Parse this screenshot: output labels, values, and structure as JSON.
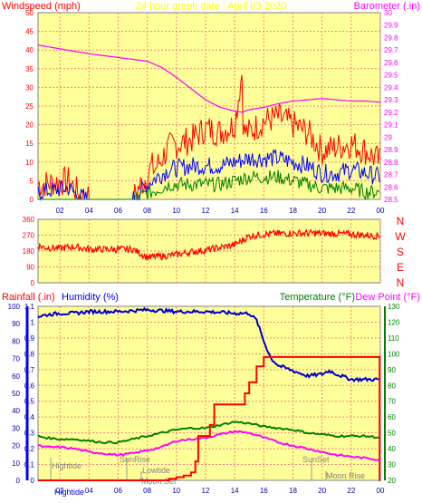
{
  "header": {
    "title": "24 hour graph date : April 03 2020",
    "windspeed_label": "Windspeed (mph)",
    "barometer_label": "Barometer (.in)"
  },
  "direction": {
    "compass": [
      "N",
      "W",
      "S",
      "E",
      "N"
    ]
  },
  "bottom": {
    "rainfall_label": "Rainfall (.in)",
    "humidity_label": "Humidity (%)",
    "temperature_label": "Temperature (°F)",
    "dewpoint_label": "Dew Point (°F)"
  },
  "events": {
    "hightide_1": "Hightide",
    "sunrise": "SunRise",
    "lowtide": "Lowtide",
    "moonset": "Moon Set",
    "sunset": "SunSet",
    "moonrise": "Moon Rise",
    "hightide_2": "Hightide"
  },
  "colors": {
    "panel": "#ffff99",
    "grid": "#f08080",
    "wind_gust": "#ff0000",
    "wind_avg": "#0000ff",
    "wind_min": "#008000",
    "barometer": "#ff00ff",
    "direction": "#ff0000",
    "humidity": "#0000cc",
    "temperature": "#008000",
    "dewpoint": "#ff00ff",
    "rain": "#ff0000",
    "windspeed_title": "#ff0000",
    "title": "#ffff00",
    "rainfall_title": "#ff0000",
    "humidity_title": "#0000ff",
    "temperature_title": "#008000",
    "dewpoint_title": "#ff00ff"
  },
  "chart_data": [
    {
      "type": "line",
      "name": "wind-barometer",
      "x_range": [
        0.5,
        24
      ],
      "x_ticks": [
        "02",
        "04",
        "06",
        "08",
        "10",
        "12",
        "14",
        "16",
        "18",
        "20",
        "22",
        "00"
      ],
      "y_left": {
        "ylim": [
          0,
          50
        ],
        "ticks": [
          0,
          5,
          10,
          15,
          20,
          25,
          30,
          35,
          40,
          45,
          50
        ]
      },
      "y_right": {
        "ylim": [
          28.5,
          30
        ],
        "ticks": [
          "28.5",
          "28.6",
          "28.7",
          "28.8",
          "28.9",
          "29",
          "29.1",
          "29.2",
          "29.3",
          "29.4",
          "29.5",
          "29.6",
          "29.7",
          "29.8",
          "29.9",
          "30"
        ]
      },
      "series": [
        {
          "axis": "left",
          "style": "gust",
          "points": [
            [
              0.5,
              4
            ],
            [
              2.6,
              5
            ],
            [
              3.0,
              3
            ],
            [
              3.4,
              1
            ],
            [
              4.0,
              0
            ],
            [
              7.0,
              0
            ],
            [
              7.4,
              3
            ],
            [
              7.8,
              5
            ],
            [
              8.3,
              9
            ],
            [
              8.5,
              8
            ],
            [
              9.5,
              14
            ],
            [
              11,
              16
            ],
            [
              12,
              19
            ],
            [
              13,
              18
            ],
            [
              14,
              20
            ],
            [
              14.5,
              34
            ],
            [
              14.6,
              18
            ],
            [
              15,
              18
            ],
            [
              16,
              21
            ],
            [
              17,
              22
            ],
            [
              18,
              20
            ],
            [
              19,
              18
            ],
            [
              20,
              13
            ],
            [
              21,
              14
            ],
            [
              22,
              15
            ],
            [
              23,
              13
            ],
            [
              24,
              10
            ]
          ],
          "amplitude": 4
        },
        {
          "axis": "left",
          "style": "avg",
          "points": [
            [
              0.5,
              2
            ],
            [
              2.6,
              3
            ],
            [
              3.2,
              1
            ],
            [
              4.0,
              0
            ],
            [
              7.0,
              0
            ],
            [
              7.5,
              2
            ],
            [
              8.3,
              5
            ],
            [
              9.5,
              8
            ],
            [
              11,
              9
            ],
            [
              12,
              9
            ],
            [
              13,
              9
            ],
            [
              14,
              10
            ],
            [
              15,
              11
            ],
            [
              16,
              11
            ],
            [
              17,
              11
            ],
            [
              18,
              10
            ],
            [
              19,
              9
            ],
            [
              20,
              7
            ],
            [
              21,
              7
            ],
            [
              22,
              8
            ],
            [
              23,
              7
            ],
            [
              24,
              6
            ]
          ],
          "amplitude": 2.5
        },
        {
          "axis": "left",
          "style": "min",
          "points": [
            [
              0.5,
              0
            ],
            [
              4.0,
              0
            ],
            [
              7.0,
              0
            ],
            [
              8.3,
              2
            ],
            [
              9.5,
              4
            ],
            [
              11,
              4
            ],
            [
              12,
              4
            ],
            [
              13,
              4
            ],
            [
              14,
              5
            ],
            [
              15,
              6
            ],
            [
              16,
              6
            ],
            [
              17,
              6
            ],
            [
              18,
              5
            ],
            [
              19,
              4
            ],
            [
              20,
              3
            ],
            [
              21,
              3
            ],
            [
              22,
              3
            ],
            [
              23,
              2
            ],
            [
              24,
              2
            ]
          ],
          "amplitude": 2
        },
        {
          "axis": "right",
          "style": "barometer",
          "points": [
            [
              0.5,
              29.74
            ],
            [
              2,
              29.71
            ],
            [
              4,
              29.67
            ],
            [
              6,
              29.64
            ],
            [
              8,
              29.61
            ],
            [
              9,
              29.56
            ],
            [
              10,
              29.48
            ],
            [
              11,
              29.39
            ],
            [
              12,
              29.3
            ],
            [
              13,
              29.24
            ],
            [
              14,
              29.21
            ],
            [
              14.5,
              29.2
            ],
            [
              15,
              29.22
            ],
            [
              16,
              29.24
            ],
            [
              17,
              29.27
            ],
            [
              18,
              29.29
            ],
            [
              19,
              29.3
            ],
            [
              20,
              29.31
            ],
            [
              21,
              29.3
            ],
            [
              22,
              29.29
            ],
            [
              23,
              29.29
            ],
            [
              24,
              29.28
            ]
          ]
        }
      ]
    },
    {
      "type": "line",
      "name": "wind-direction",
      "x_range": [
        0.5,
        24
      ],
      "ylim": [
        0,
        360
      ],
      "y_ticks": [
        0,
        90,
        180,
        270,
        360
      ],
      "series": [
        {
          "style": "direction",
          "points": [
            [
              0.5,
              210
            ],
            [
              1,
              200
            ],
            [
              2,
              195
            ],
            [
              3,
              205
            ],
            [
              4,
              190
            ],
            [
              6,
              190
            ],
            [
              7,
              190
            ],
            [
              8,
              145
            ],
            [
              9,
              150
            ],
            [
              10,
              160
            ],
            [
              11,
              175
            ],
            [
              12,
              185
            ],
            [
              13,
              200
            ],
            [
              14,
              215
            ],
            [
              15,
              265
            ],
            [
              16,
              275
            ],
            [
              17,
              280
            ],
            [
              18,
              280
            ],
            [
              19,
              282
            ],
            [
              20,
              280
            ],
            [
              21,
              278
            ],
            [
              22,
              275
            ],
            [
              23,
              270
            ],
            [
              24,
              265
            ]
          ],
          "amplitude": 20
        }
      ]
    },
    {
      "type": "line",
      "name": "humidity-temperature",
      "x_range": [
        0.5,
        24
      ],
      "y_left_rain": {
        "ylim": [
          0,
          1.1
        ],
        "ticks": [
          "0",
          "0.1",
          "0.2",
          "0.3",
          "0.4",
          "0.5",
          "0.6",
          "0.7",
          "0.8",
          "0.9",
          "1",
          "1.1"
        ]
      },
      "y_left_humidity": {
        "ylim": [
          0,
          100
        ],
        "ticks": [
          0,
          10,
          20,
          30,
          40,
          50,
          60,
          70,
          80,
          90,
          100
        ]
      },
      "y_right": {
        "ylim": [
          20,
          130
        ],
        "ticks": [
          20,
          30,
          40,
          50,
          60,
          70,
          80,
          90,
          100,
          110,
          120,
          130
        ]
      },
      "series": [
        {
          "axis": "humidity",
          "style": "humidity",
          "points": [
            [
              0.5,
              94
            ],
            [
              1,
              95
            ],
            [
              2,
              96
            ],
            [
              3,
              96
            ],
            [
              4,
              97
            ],
            [
              6,
              97
            ],
            [
              8,
              98
            ],
            [
              10,
              97
            ],
            [
              12,
              97
            ],
            [
              14,
              96
            ],
            [
              15,
              96
            ],
            [
              15.5,
              92
            ],
            [
              16,
              80
            ],
            [
              16.5,
              70
            ],
            [
              17,
              66
            ],
            [
              18,
              63
            ],
            [
              19,
              60
            ],
            [
              20,
              61
            ],
            [
              20.5,
              63
            ],
            [
              21,
              61
            ],
            [
              22,
              58
            ],
            [
              23,
              58
            ],
            [
              24,
              58
            ]
          ],
          "amplitude": 1
        },
        {
          "axis": "right",
          "style": "temperature",
          "points": [
            [
              0.5,
              48
            ],
            [
              1,
              47
            ],
            [
              2,
              46
            ],
            [
              3,
              46
            ],
            [
              4,
              45
            ],
            [
              5,
              44
            ],
            [
              6,
              44
            ],
            [
              7,
              46
            ],
            [
              8,
              48
            ],
            [
              9,
              50
            ],
            [
              10,
              52
            ],
            [
              11,
              53
            ],
            [
              12,
              53
            ],
            [
              13,
              55
            ],
            [
              14,
              57
            ],
            [
              15,
              56
            ],
            [
              16,
              54
            ],
            [
              17,
              53
            ],
            [
              18,
              52
            ],
            [
              19,
              50
            ],
            [
              20,
              49
            ],
            [
              21,
              48
            ],
            [
              22,
              48
            ],
            [
              23,
              48
            ],
            [
              24,
              47
            ]
          ],
          "amplitude": 0.6
        },
        {
          "axis": "right",
          "style": "dewpoint",
          "points": [
            [
              0.5,
              42
            ],
            [
              1,
              41
            ],
            [
              2,
              41
            ],
            [
              3,
              40
            ],
            [
              4,
              38
            ],
            [
              5,
              37
            ],
            [
              6,
              36
            ],
            [
              7,
              37
            ],
            [
              8,
              39
            ],
            [
              9,
              41
            ],
            [
              10,
              45
            ],
            [
              11,
              46
            ],
            [
              12,
              47
            ],
            [
              13,
              49
            ],
            [
              14,
              51
            ],
            [
              15,
              50
            ],
            [
              16,
              47
            ],
            [
              17,
              44
            ],
            [
              18,
              42
            ],
            [
              19,
              40
            ],
            [
              20,
              38
            ],
            [
              21,
              36
            ],
            [
              22,
              35
            ],
            [
              23,
              34
            ],
            [
              24,
              33
            ]
          ],
          "amplitude": 0.6
        },
        {
          "axis": "rain",
          "style": "rain",
          "stepped": true,
          "points": [
            [
              0.5,
              0
            ],
            [
              9,
              0
            ],
            [
              9.5,
              0.01
            ],
            [
              10,
              0.02
            ],
            [
              10.5,
              0.03
            ],
            [
              11,
              0.05
            ],
            [
              11.3,
              0.12
            ],
            [
              11.5,
              0.28
            ],
            [
              12,
              0.28
            ],
            [
              12.3,
              0.35
            ],
            [
              12.6,
              0.48
            ],
            [
              13,
              0.48
            ],
            [
              14,
              0.48
            ],
            [
              14.5,
              0.48
            ],
            [
              14.7,
              0.55
            ],
            [
              15,
              0.62
            ],
            [
              15.5,
              0.72
            ],
            [
              16,
              0.78
            ],
            [
              18,
              0.78
            ],
            [
              20,
              0.78
            ],
            [
              23.9,
              0.78
            ],
            [
              23.95,
              0
            ],
            [
              24,
              0
            ]
          ]
        }
      ]
    }
  ]
}
